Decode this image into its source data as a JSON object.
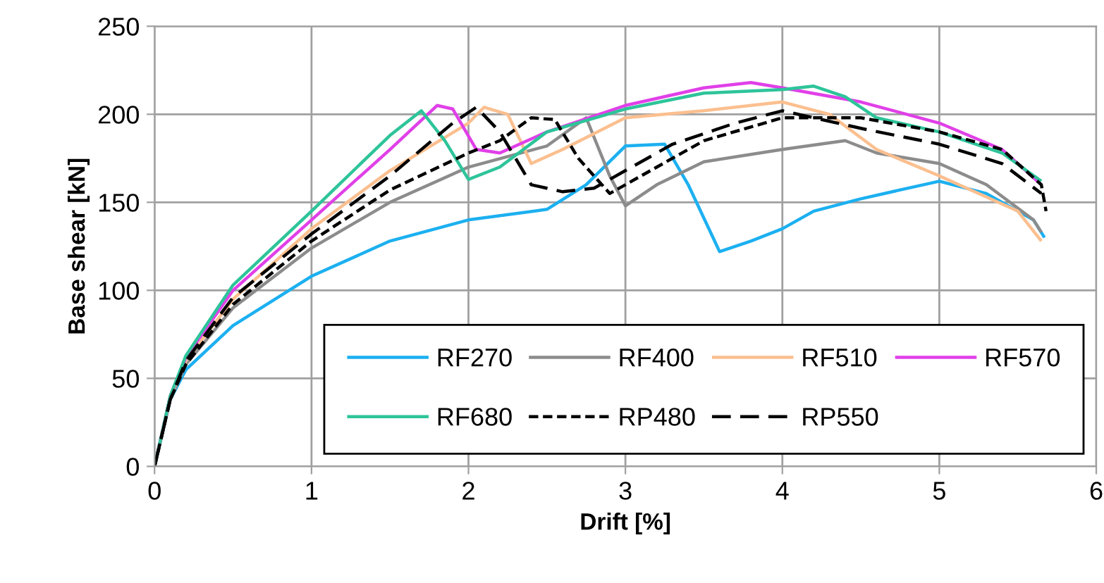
{
  "chart_data": {
    "type": "line",
    "xlabel": "Drift [%]",
    "ylabel": "Base shear [kN]",
    "xlim": [
      0,
      6
    ],
    "xticks": [
      0,
      1,
      2,
      3,
      4,
      5,
      6
    ],
    "ylim": [
      0,
      250
    ],
    "yticks": [
      0,
      50,
      100,
      150,
      200,
      250
    ],
    "grid": true,
    "legend": "bottom right",
    "marker": "none",
    "series": [
      {
        "name": "RF270",
        "color": "#1cb0f0",
        "line_style": "solid",
        "x": [
          0,
          0.1,
          0.2,
          0.5,
          1,
          1.5,
          2,
          2.5,
          2.75,
          3,
          3.25,
          3.4,
          3.6,
          3.8,
          4,
          4.2,
          4.5,
          5,
          5.3,
          5.6,
          5.67
        ],
        "values": [
          0,
          38,
          55,
          80,
          108,
          128,
          140,
          146,
          160,
          182,
          183,
          160,
          122,
          128,
          135,
          145,
          152,
          162,
          155,
          140,
          130
        ]
      },
      {
        "name": "RF400",
        "color": "#8c8c8c",
        "line_style": "solid",
        "x": [
          0,
          0.1,
          0.2,
          0.5,
          1,
          1.5,
          2,
          2.5,
          2.75,
          2.9,
          3,
          3.2,
          3.5,
          4,
          4.4,
          4.6,
          5,
          5.3,
          5.6,
          5.65
        ],
        "values": [
          0,
          38,
          58,
          90,
          124,
          150,
          170,
          182,
          198,
          165,
          148,
          160,
          173,
          180,
          185,
          178,
          172,
          160,
          140,
          133
        ]
      },
      {
        "name": "RF510",
        "color": "#fbbf8f",
        "line_style": "solid",
        "x": [
          0,
          0.1,
          0.2,
          0.5,
          1,
          1.5,
          2,
          2.1,
          2.25,
          2.4,
          2.6,
          3,
          3.5,
          4,
          4.3,
          4.6,
          5,
          5.5,
          5.65
        ],
        "values": [
          0,
          40,
          60,
          95,
          135,
          168,
          195,
          204,
          200,
          172,
          180,
          198,
          202,
          207,
          200,
          180,
          165,
          145,
          128
        ]
      },
      {
        "name": "RF570",
        "color": "#e040e8",
        "line_style": "solid",
        "x": [
          0,
          0.1,
          0.2,
          0.5,
          1,
          1.5,
          1.8,
          1.9,
          2.05,
          2.2,
          2.5,
          3,
          3.5,
          3.8,
          4,
          4.5,
          5,
          5.4,
          5.65
        ],
        "values": [
          0,
          40,
          62,
          100,
          140,
          180,
          205,
          203,
          180,
          178,
          190,
          205,
          215,
          218,
          215,
          207,
          195,
          180,
          160
        ]
      },
      {
        "name": "RF680",
        "color": "#2ec49a",
        "line_style": "solid",
        "x": [
          0,
          0.1,
          0.2,
          0.5,
          1,
          1.5,
          1.7,
          1.85,
          2,
          2.2,
          2.5,
          3,
          3.5,
          4,
          4.2,
          4.4,
          4.6,
          5,
          5.4,
          5.65
        ],
        "values": [
          0,
          40,
          63,
          103,
          145,
          188,
          202,
          185,
          163,
          170,
          190,
          203,
          212,
          214,
          216,
          210,
          198,
          190,
          178,
          162
        ]
      },
      {
        "name": "RP480",
        "color": "#000000",
        "line_style": "dotted",
        "x": [
          0,
          0.1,
          0.2,
          0.5,
          1,
          1.5,
          2,
          2.2,
          2.4,
          2.55,
          2.7,
          2.9,
          3.1,
          3.3,
          3.5,
          4,
          4.5,
          5,
          5.4,
          5.65,
          5.68
        ],
        "values": [
          0,
          38,
          58,
          92,
          128,
          157,
          178,
          185,
          198,
          197,
          175,
          155,
          165,
          175,
          185,
          198,
          198,
          190,
          180,
          160,
          145
        ]
      },
      {
        "name": "RP550",
        "color": "#000000",
        "line_style": "dashed",
        "x": [
          0,
          0.1,
          0.2,
          0.5,
          1,
          1.5,
          1.9,
          2.05,
          2.2,
          2.4,
          2.6,
          2.8,
          3,
          3.3,
          3.7,
          4,
          4.2,
          4.5,
          5,
          5.4,
          5.65
        ],
        "values": [
          0,
          38,
          60,
          96,
          132,
          165,
          195,
          204,
          190,
          160,
          156,
          158,
          168,
          183,
          195,
          202,
          198,
          192,
          183,
          172,
          155
        ]
      }
    ]
  }
}
